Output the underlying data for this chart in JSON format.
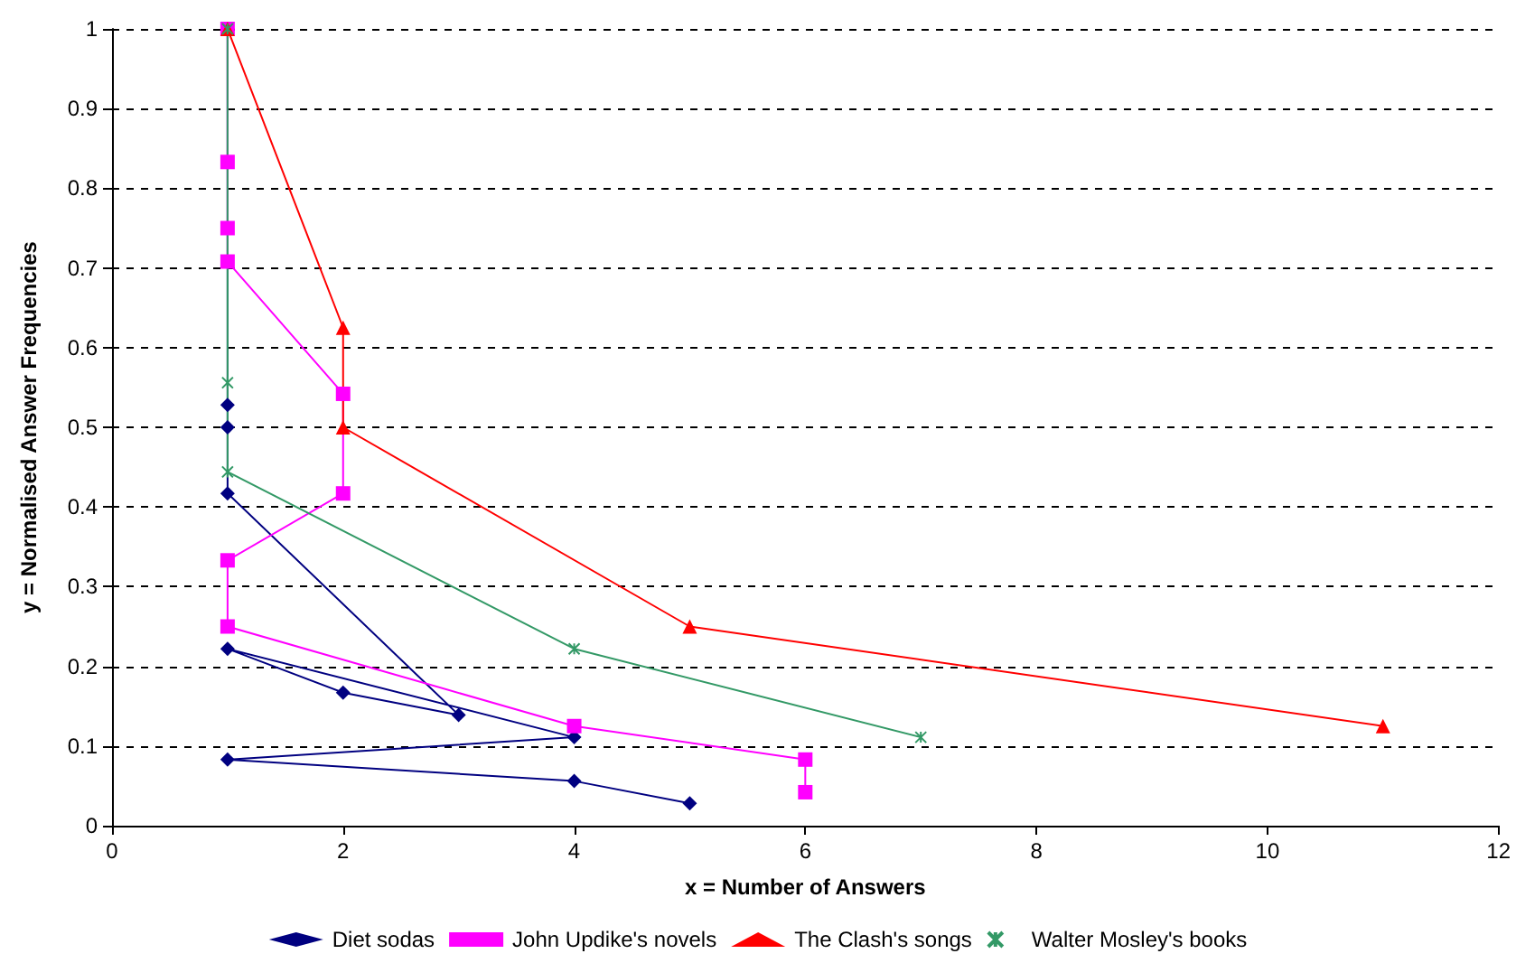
{
  "chart_data": {
    "type": "line",
    "xlabel": "x = Number of Answers",
    "ylabel": "y = Normalised Answer Frequencies",
    "xlim": [
      0,
      12
    ],
    "xticks": [
      0,
      2,
      4,
      6,
      8,
      10,
      12
    ],
    "ylim": [
      0,
      1
    ],
    "yticks": [
      0,
      0.1,
      0.2,
      0.3,
      0.4,
      0.5,
      0.6,
      0.7,
      0.8,
      0.9,
      1
    ],
    "grid": "y",
    "legend": "bottom",
    "series": [
      {
        "name": "Diet sodas",
        "color": "#000080",
        "marker": "diamond",
        "x": [
          1,
          1,
          1,
          1,
          3,
          2,
          1,
          4,
          1,
          4,
          5
        ],
        "values": [
          1,
          0.528,
          0.5,
          0.417,
          0.139,
          0.167,
          0.222,
          0.111,
          0.083,
          0.056,
          0.028
        ]
      },
      {
        "name": "John Updike's novels",
        "color": "#ff00ff",
        "marker": "square",
        "x": [
          1,
          1,
          1,
          1,
          2,
          2,
          1,
          1,
          4,
          6,
          6
        ],
        "values": [
          1,
          0.833,
          0.75,
          0.708,
          0.542,
          0.417,
          0.333,
          0.25,
          0.125,
          0.083,
          0.042
        ]
      },
      {
        "name": "The Clash's songs",
        "color": "#ff0000",
        "marker": "triangle",
        "x": [
          1,
          2,
          2,
          5,
          11
        ],
        "values": [
          1,
          0.625,
          0.5,
          0.25,
          0.125
        ]
      },
      {
        "name": "Walter Mosley's books",
        "color": "#339966",
        "marker": "cross",
        "x": [
          1,
          1,
          1,
          4,
          7
        ],
        "values": [
          1,
          0.556,
          0.444,
          0.222,
          0.111
        ]
      }
    ]
  }
}
